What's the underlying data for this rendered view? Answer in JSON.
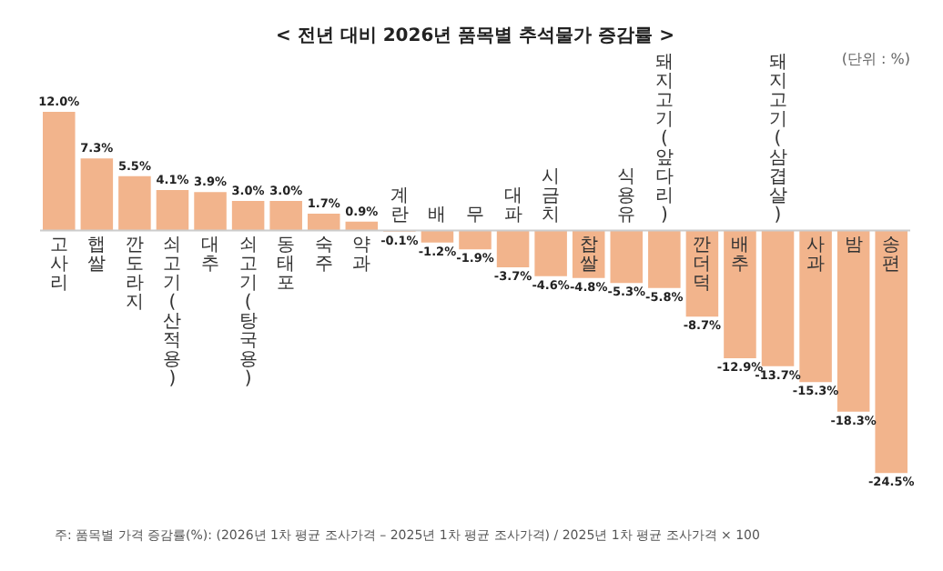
{
  "chart_data": {
    "type": "bar",
    "title": "< 전년 대비 2026년 품목별 추석물가 증감률 >",
    "subtitle": "(단위 : %)",
    "categories": [
      "고사리",
      "햅쌀",
      "깐도라지",
      "쇠고기(산적용)",
      "대추",
      "쇠고기(탕국용)",
      "동태포",
      "숙주",
      "약과",
      "계란",
      "배",
      "무",
      "대파",
      "시금치",
      "찹쌀",
      "식용유",
      "돼지고기(앞다리)",
      "깐더덕",
      "배추",
      "돼지고기(삼겹살)",
      "사과",
      "밤",
      "송편"
    ],
    "values": [
      12.0,
      7.3,
      5.5,
      4.1,
      3.9,
      3.0,
      3.0,
      1.7,
      0.9,
      -0.1,
      -1.2,
      -1.9,
      -3.7,
      -4.6,
      -4.8,
      -5.3,
      -5.8,
      -8.7,
      -12.9,
      -13.7,
      -15.3,
      -18.3,
      -24.5
    ],
    "value_labels": [
      "12.0%",
      "7.3%",
      "5.5%",
      "4.1%",
      "3.9%",
      "3.0%",
      "3.0%",
      "1.7%",
      "0.9%",
      "-0.1%",
      "-1.2%",
      "-1.9%",
      "-3.7%",
      "-4.6%",
      "-4.8%",
      "-5.3%",
      "-5.8%",
      "-8.7%",
      "-12.9%",
      "-13.7%",
      "-15.3%",
      "-18.3%",
      "-24.5%"
    ],
    "color": "#f2b48c",
    "tick_labels": "x",
    "grid": false,
    "legend": false,
    "annotations": [
      "주: 품목별 가격 증감률(%): (2026년 1차 평균 조사가격 – 2025년 1차 평균 조사가격) / 2025년 1차 평균 조사가격 × 100"
    ]
  }
}
